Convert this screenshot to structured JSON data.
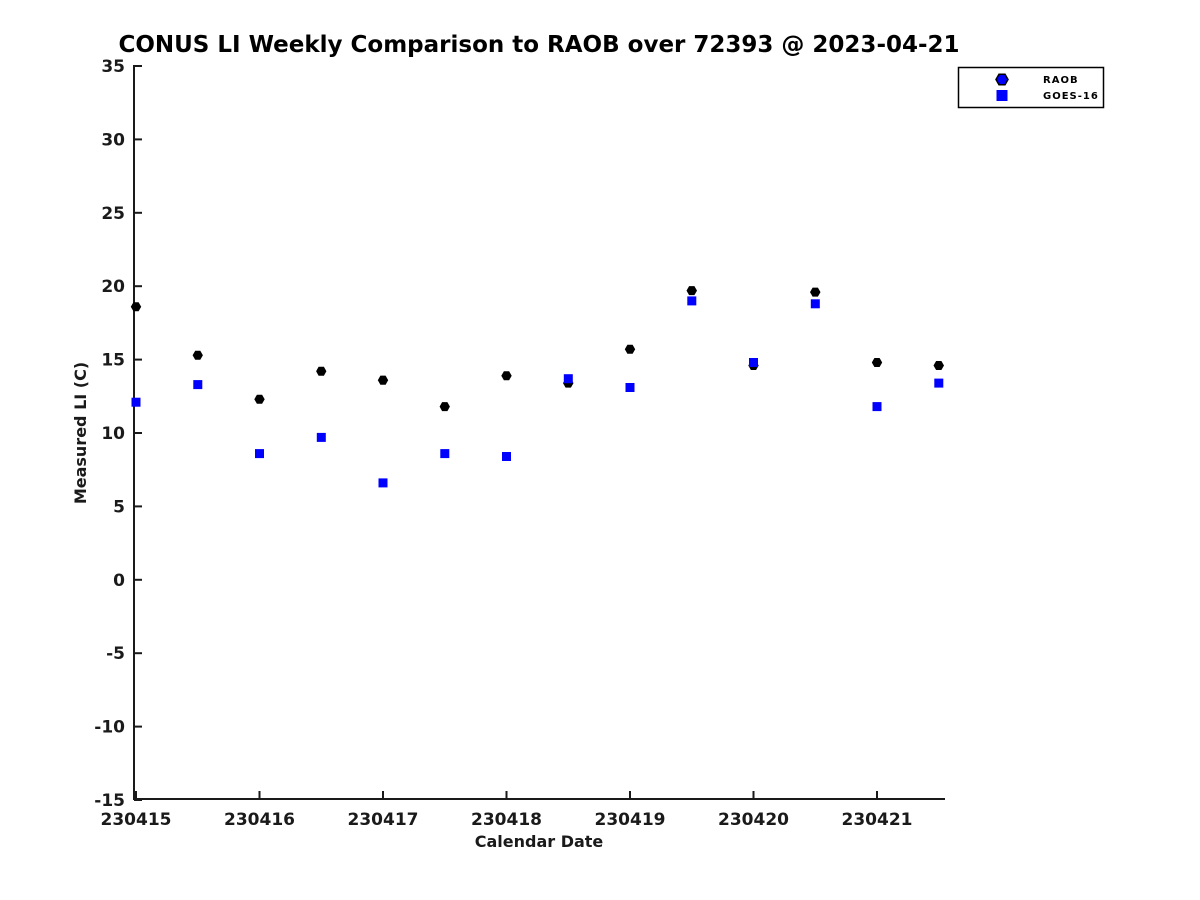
{
  "chart_data": {
    "type": "scatter",
    "title": "CONUS LI Weekly Comparison to RAOB over 72393 @ 2023-04-21",
    "xlabel": "Calendar Date",
    "ylabel": "Measured LI (C)",
    "ylim": [
      -15,
      35
    ],
    "y_ticks": [
      35,
      30,
      25,
      20,
      15,
      10,
      5,
      0,
      -5,
      -10,
      -15
    ],
    "x_tick_labels": [
      "230415",
      "230416",
      "230417",
      "230418",
      "230419",
      "230420",
      "230421"
    ],
    "x_dates": [
      "230415.0",
      "230415.5",
      "230416.0",
      "230416.5",
      "230417.0",
      "230417.5",
      "230418.0",
      "230418.5",
      "230419.0",
      "230419.5",
      "230420.0",
      "230420.5",
      "230421.0",
      "230421.5"
    ],
    "x": [
      0,
      0.5,
      1,
      1.5,
      2,
      2.5,
      3,
      3.5,
      4,
      4.5,
      5,
      5.5,
      6,
      6.5
    ],
    "grid": false,
    "legend_position": "top-right",
    "series": [
      {
        "name": "RAOB",
        "marker": "hexagon",
        "color": "#000000",
        "legend_fill": "#0000ff",
        "values": [
          18.6,
          15.3,
          12.3,
          14.2,
          13.6,
          11.8,
          13.9,
          13.4,
          15.7,
          19.7,
          14.6,
          19.6,
          14.8,
          14.6
        ]
      },
      {
        "name": "GOES-16",
        "marker": "square",
        "color": "#0000ff",
        "legend_fill": "#0000ff",
        "values": [
          12.1,
          13.3,
          8.6,
          9.7,
          6.6,
          8.6,
          8.4,
          13.7,
          13.1,
          19.0,
          14.8,
          18.8,
          11.8,
          13.4
        ]
      }
    ]
  }
}
